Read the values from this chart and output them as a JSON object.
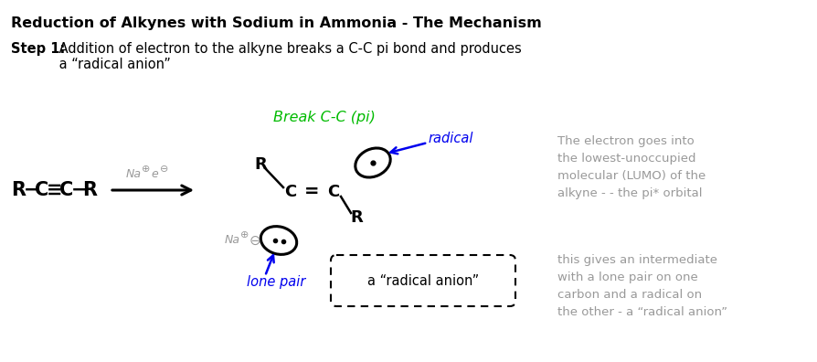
{
  "title": "Reduction of Alkynes with Sodium in Ammonia - The Mechanism",
  "step_label": "Step 1:",
  "step_text": " Addition of electron to the alkyne breaks a C-C pi bond and produces\n a “radical anion”",
  "break_label": "Break C-C (pi)",
  "radical_label": "radical",
  "lone_pair_label": "lone pair",
  "radical_anion_label": "a “radical anion”",
  "right_text1": "The electron goes into\nthe lowest-unoccupied\nmolecular (LUMO) of the\nalkyne - - the pi* orbital",
  "right_text2": "this gives an intermediate\nwith a lone pair on one\ncarbon and a radical on\nthe other - a “radical anion”",
  "bg_color": "#ffffff",
  "title_color": "#000000",
  "step_color": "#000000",
  "break_color": "#00bb00",
  "radical_color": "#0000ee",
  "lone_pair_color": "#0000ee",
  "right_text_color": "#999999",
  "na_e_color": "#999999"
}
